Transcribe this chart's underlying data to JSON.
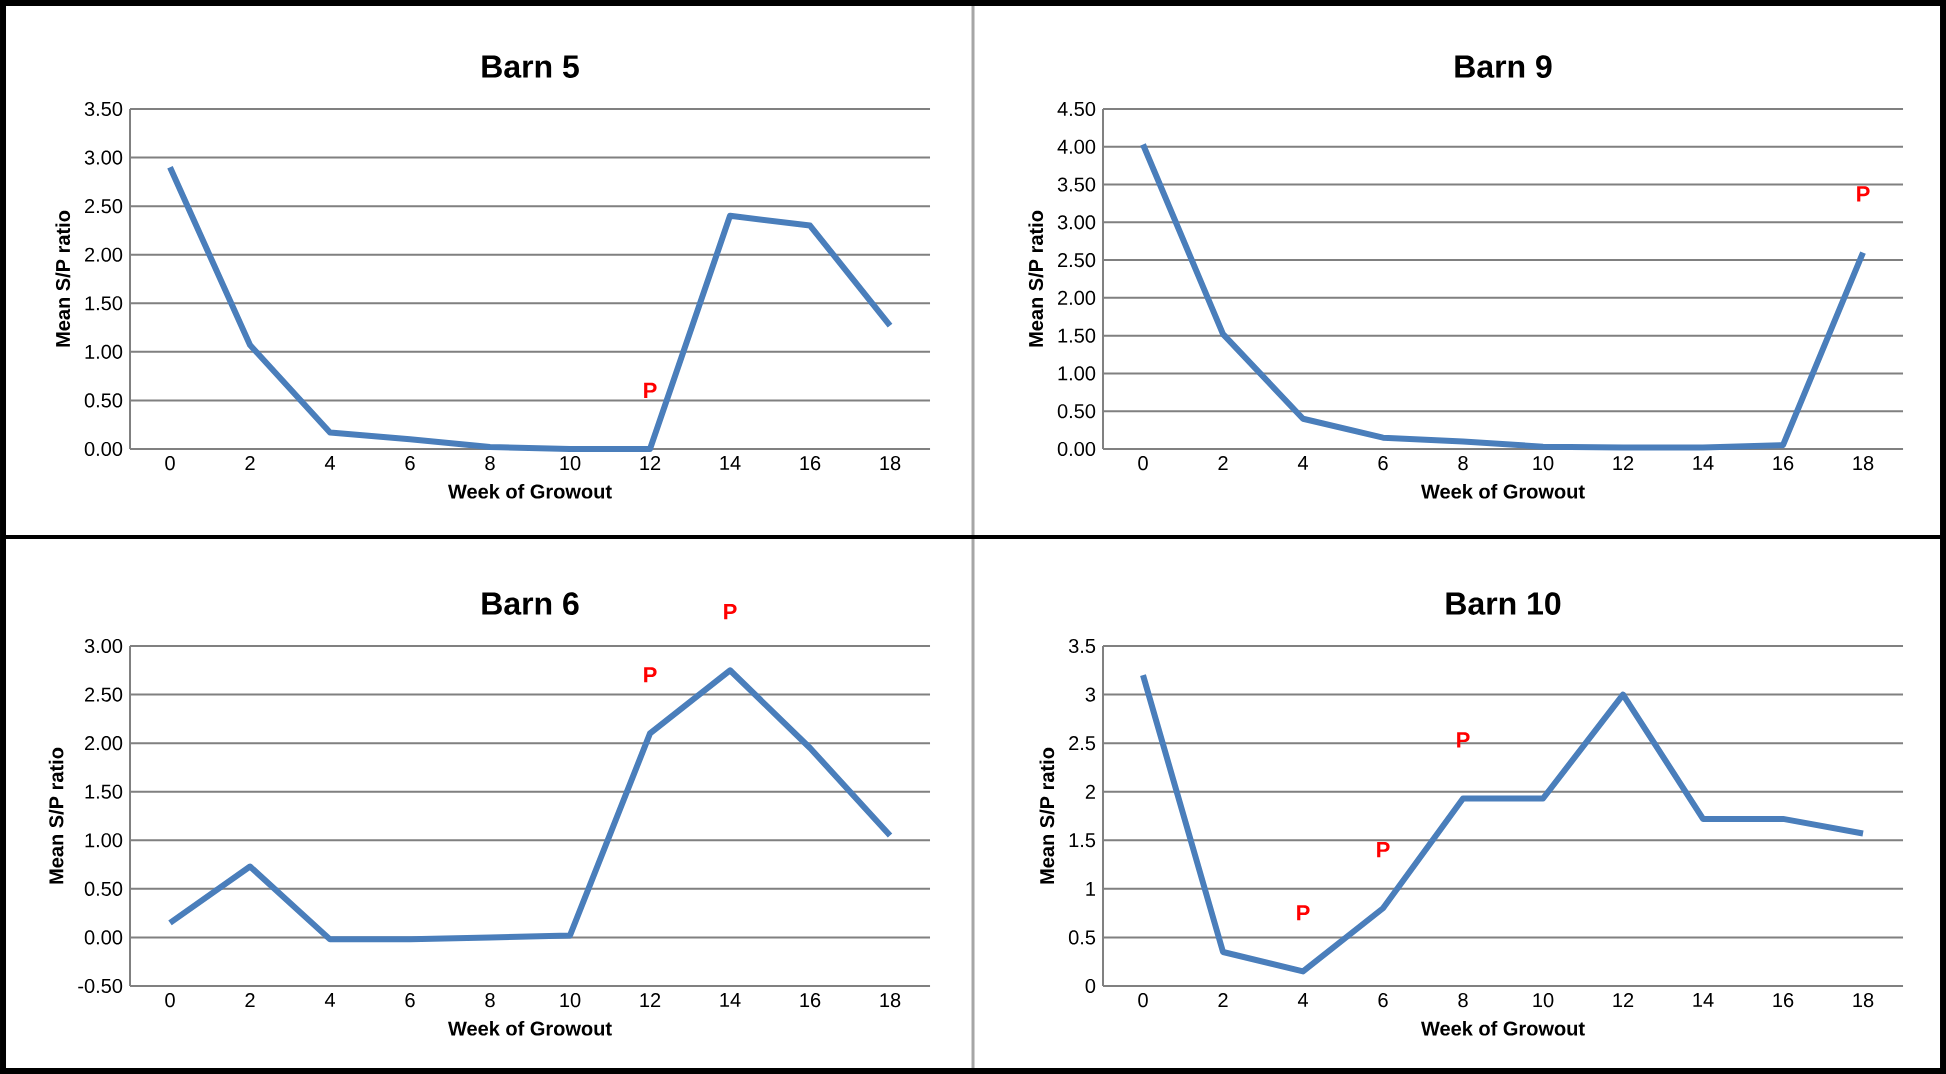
{
  "chart_data": [
    {
      "type": "line",
      "title": "Barn 5",
      "xlabel": "Week of Growout",
      "ylabel": "Mean S/P ratio",
      "x": [
        0,
        2,
        4,
        6,
        8,
        10,
        12,
        14,
        16,
        18
      ],
      "xlim": [
        -1,
        19
      ],
      "xticks": [
        0,
        2,
        4,
        6,
        8,
        10,
        12,
        14,
        16,
        18
      ],
      "ylim": [
        0,
        3.5
      ],
      "yticks": [
        {
          "value": 0,
          "label": "0.00"
        },
        {
          "value": 0.5,
          "label": "0.50"
        },
        {
          "value": 1,
          "label": "1.00"
        },
        {
          "value": 1.5,
          "label": "1.50"
        },
        {
          "value": 2,
          "label": "2.00"
        },
        {
          "value": 2.5,
          "label": "2.50"
        },
        {
          "value": 3,
          "label": "3.00"
        },
        {
          "value": 3.5,
          "label": "3.50"
        }
      ],
      "grid": "y",
      "marker": "none",
      "color": "#4a7ebb",
      "values": [
        2.9,
        1.07,
        0.17,
        0.1,
        0.02,
        0.0,
        0.0,
        2.4,
        2.3,
        1.27
      ],
      "annotations": [
        {
          "text": "P",
          "x": 12,
          "y": 0.0
        }
      ]
    },
    {
      "type": "line",
      "title": "Barn 9",
      "xlabel": "Week of Growout",
      "ylabel": "Mean S/P ratio",
      "x": [
        0,
        2,
        4,
        6,
        8,
        10,
        12,
        14,
        16,
        18
      ],
      "xlim": [
        -1,
        19
      ],
      "xticks": [
        0,
        2,
        4,
        6,
        8,
        10,
        12,
        14,
        16,
        18
      ],
      "ylim": [
        0,
        4.5
      ],
      "yticks": [
        {
          "value": 0,
          "label": "0.00"
        },
        {
          "value": 0.5,
          "label": "0.50"
        },
        {
          "value": 1,
          "label": "1.00"
        },
        {
          "value": 1.5,
          "label": "1.50"
        },
        {
          "value": 2,
          "label": "2.00"
        },
        {
          "value": 2.5,
          "label": "2.50"
        },
        {
          "value": 3,
          "label": "3.00"
        },
        {
          "value": 3.5,
          "label": "3.50"
        },
        {
          "value": 4,
          "label": "4.00"
        },
        {
          "value": 4.5,
          "label": "4.50"
        }
      ],
      "grid": "y",
      "marker": "none",
      "color": "#4a7ebb",
      "values": [
        4.03,
        1.52,
        0.4,
        0.15,
        0.1,
        0.03,
        0.02,
        0.02,
        0.05,
        2.6
      ],
      "annotations": [
        {
          "text": "P",
          "x": 18,
          "y": 2.6
        }
      ]
    },
    {
      "type": "line",
      "title": "Barn 6",
      "xlabel": "Week of Growout",
      "ylabel": "Mean S/P ratio",
      "x": [
        0,
        2,
        4,
        6,
        8,
        10,
        12,
        14,
        16,
        18
      ],
      "xlim": [
        -1,
        19
      ],
      "xticks": [
        0,
        2,
        4,
        6,
        8,
        10,
        12,
        14,
        16,
        18
      ],
      "ylim": [
        -0.5,
        3.0
      ],
      "yticks": [
        {
          "value": -0.5,
          "label": "-0.50"
        },
        {
          "value": 0,
          "label": "0.00"
        },
        {
          "value": 0.5,
          "label": "0.50"
        },
        {
          "value": 1,
          "label": "1.00"
        },
        {
          "value": 1.5,
          "label": "1.50"
        },
        {
          "value": 2,
          "label": "2.00"
        },
        {
          "value": 2.5,
          "label": "2.50"
        },
        {
          "value": 3,
          "label": "3.00"
        }
      ],
      "grid": "y",
      "marker": "none",
      "color": "#4a7ebb",
      "values": [
        0.15,
        0.73,
        -0.02,
        -0.02,
        0.0,
        0.02,
        2.1,
        2.75,
        1.95,
        1.05
      ],
      "annotations": [
        {
          "text": "P",
          "x": 12,
          "y": 2.1
        },
        {
          "text": "P",
          "x": 14,
          "y": 2.75
        }
      ]
    },
    {
      "type": "line",
      "title": "Barn 10",
      "xlabel": "Week of Growout",
      "ylabel": "Mean S/P ratio",
      "x": [
        0,
        2,
        4,
        6,
        8,
        10,
        12,
        14,
        16,
        18
      ],
      "xlim": [
        -1,
        19
      ],
      "xticks": [
        0,
        2,
        4,
        6,
        8,
        10,
        12,
        14,
        16,
        18
      ],
      "ylim": [
        0,
        3.5
      ],
      "yticks": [
        0,
        0.5,
        1,
        1.5,
        2,
        2.5,
        3,
        3.5
      ],
      "grid": "y",
      "marker": "none",
      "color": "#4a7ebb",
      "values": [
        3.2,
        0.35,
        0.15,
        0.8,
        1.93,
        1.93,
        3.0,
        1.72,
        1.72,
        1.57
      ],
      "annotations": [
        {
          "text": "P",
          "x": 4,
          "y": 0.15
        },
        {
          "text": "P",
          "x": 6,
          "y": 0.8
        },
        {
          "text": "P",
          "x": 8,
          "y": 1.93
        }
      ]
    }
  ]
}
